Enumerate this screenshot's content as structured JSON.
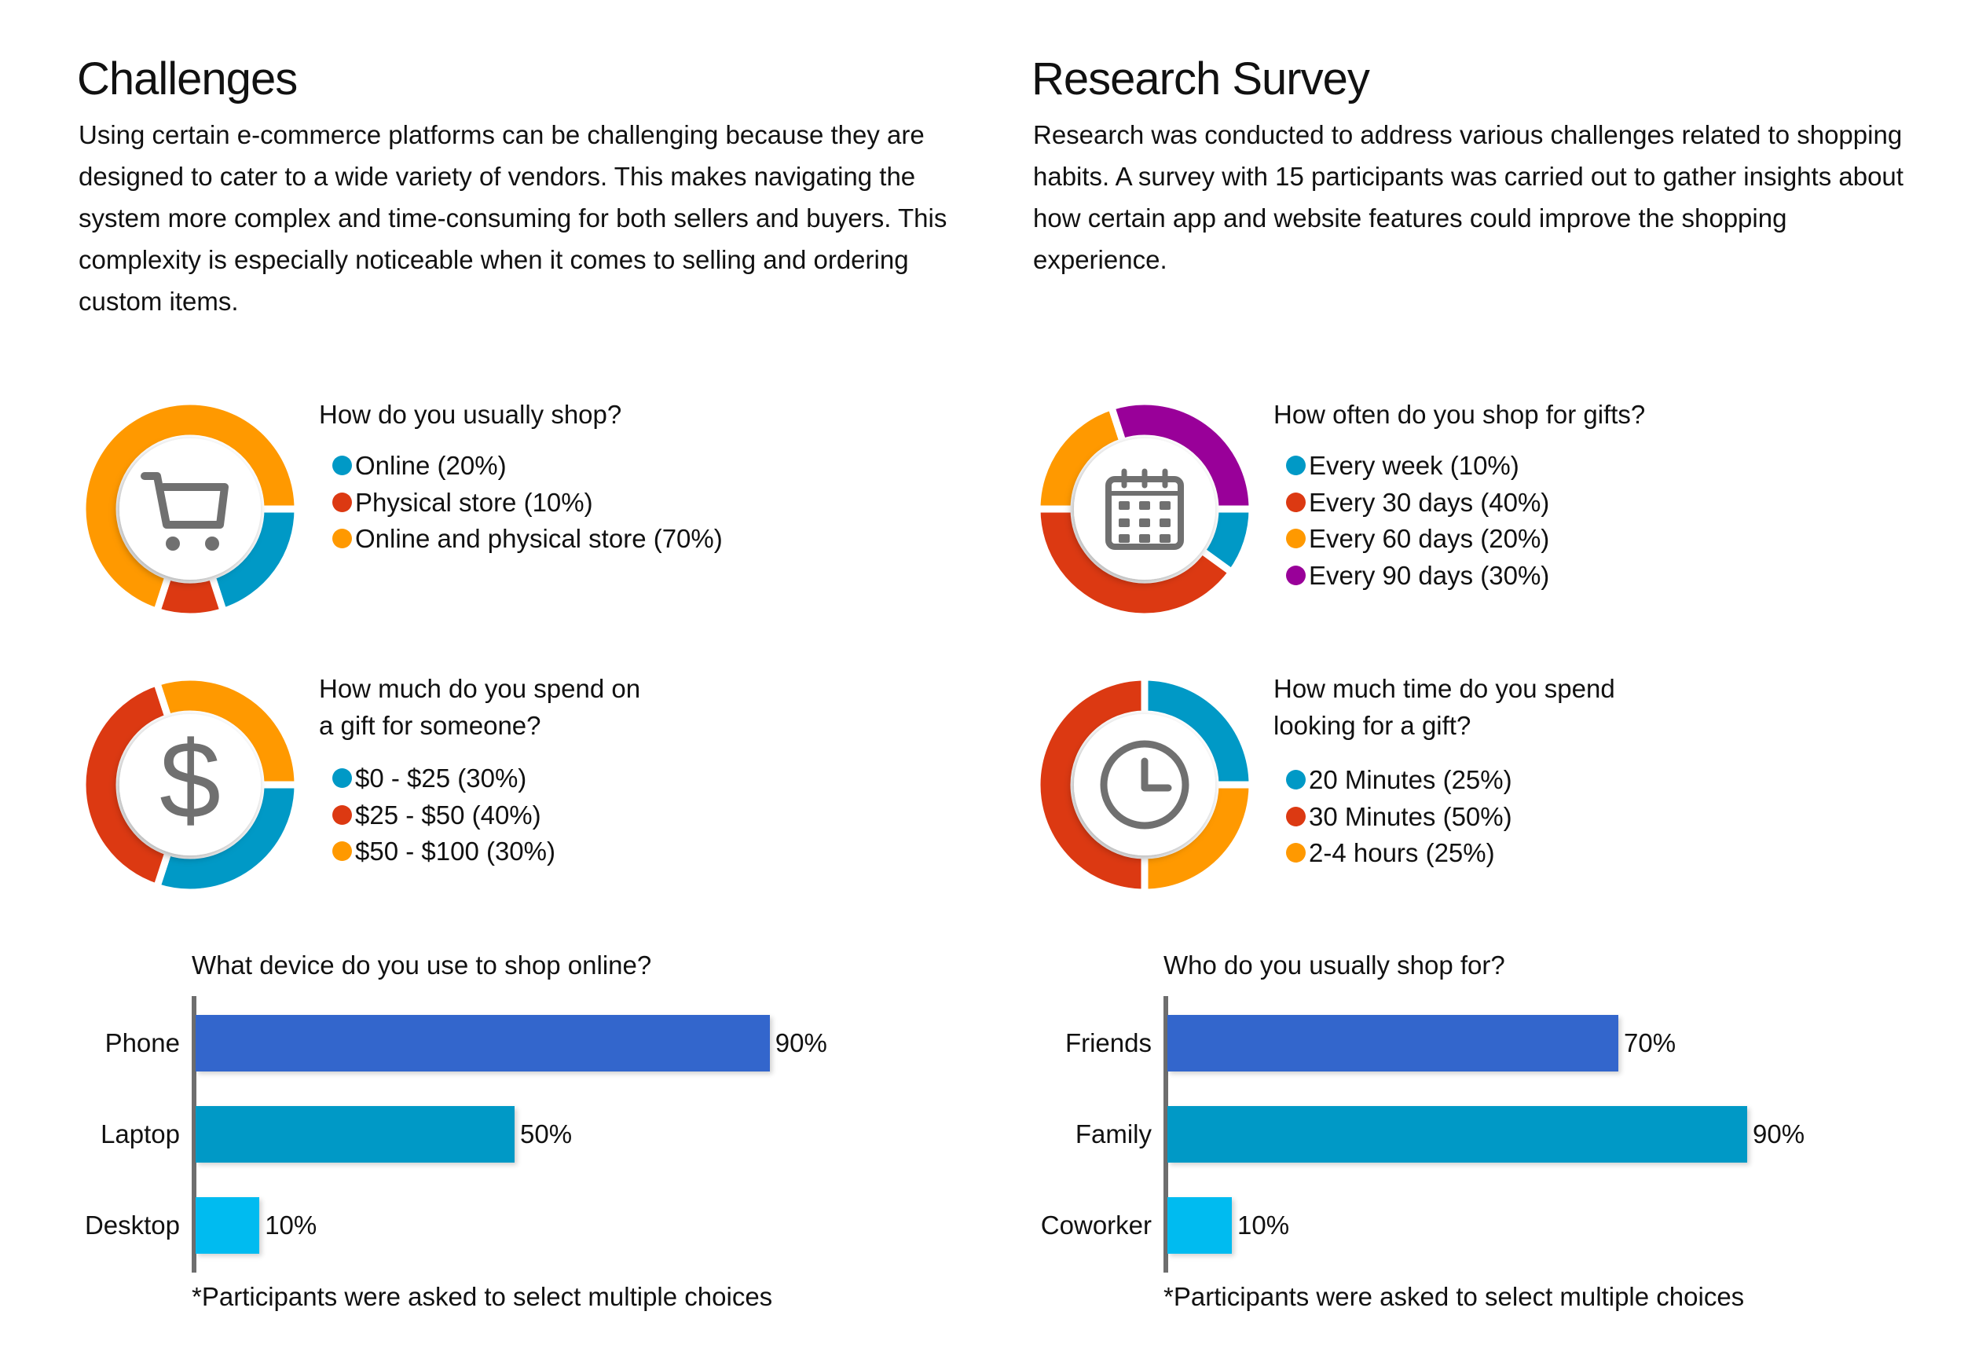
{
  "left": {
    "title": "Challenges",
    "paragraph": "Using certain e-commerce platforms can be challenging because they are designed to cater to a wide variety of vendors. This makes navigating the system more complex and time-consuming for both sellers and buyers. This complexity is especially noticeable when it comes to selling and ordering custom items."
  },
  "right": {
    "title": "Research Survey",
    "paragraph": "Research was conducted to address various challenges related to shopping habits. A survey with 15 participants was carried out to gather insights about how certain app and website features could improve the shopping experience."
  },
  "colors": {
    "blue": "#0099C6",
    "red": "#DC3912",
    "orange": "#FF9900",
    "purple": "#990099",
    "bar_dark": "#3366CC",
    "bar_mid": "#0099C6",
    "bar_light": "#00BBF0",
    "icon": "#707070",
    "axis": "#6E6E6E"
  },
  "chart_data": [
    {
      "type": "pie",
      "variant": "donut",
      "icon": "shopping-cart-icon",
      "title_lines": [
        "How do you usually shop?"
      ],
      "categories": [
        "Online (20%)",
        "Physical store (10%)",
        "Online and physical store (70%)"
      ],
      "values": [
        20,
        10,
        70
      ],
      "colors": [
        "#0099C6",
        "#DC3912",
        "#FF9900"
      ]
    },
    {
      "type": "pie",
      "variant": "donut",
      "icon": "dollar-icon",
      "title_lines": [
        "How much do you spend on",
        "a gift for someone?"
      ],
      "categories": [
        "$0 - $25 (30%)",
        "$25 - $50 (40%)",
        "$50 - $100 (30%)"
      ],
      "values": [
        30,
        40,
        30
      ],
      "colors": [
        "#0099C6",
        "#DC3912",
        "#FF9900"
      ]
    },
    {
      "type": "pie",
      "variant": "donut",
      "icon": "calendar-icon",
      "title_lines": [
        "How often do you shop for gifts?"
      ],
      "categories": [
        "Every week (10%)",
        "Every 30 days (40%)",
        "Every 60 days (20%)",
        "Every 90 days (30%)"
      ],
      "values": [
        10,
        40,
        20,
        30
      ],
      "colors": [
        "#0099C6",
        "#DC3912",
        "#FF9900",
        "#990099"
      ]
    },
    {
      "type": "pie",
      "variant": "donut",
      "icon": "clock-icon",
      "title_lines": [
        "How much time do you spend",
        "looking for a gift?"
      ],
      "categories": [
        "20 Minutes (25%)",
        "30 Minutes (50%)",
        "2-4 hours (25%)"
      ],
      "values": [
        25,
        50,
        25
      ],
      "colors": [
        "#0099C6",
        "#DC3912",
        "#FF9900"
      ]
    },
    {
      "type": "bar",
      "orientation": "horizontal",
      "title": "What device do you use to shop online?",
      "categories": [
        "Phone",
        "Laptop",
        "Desktop"
      ],
      "values": [
        90,
        50,
        10
      ],
      "value_labels": [
        "90%",
        "50%",
        "10%"
      ],
      "colors": [
        "#3366CC",
        "#0099C6",
        "#00BBF0"
      ],
      "xlim": [
        0,
        100
      ],
      "footnote": "*Participants were asked to select multiple choices"
    },
    {
      "type": "bar",
      "orientation": "horizontal",
      "title": "Who do you usually shop for?",
      "categories": [
        "Friends",
        "Family",
        "Coworker"
      ],
      "values": [
        70,
        90,
        10
      ],
      "value_labels": [
        "70%",
        "90%",
        "10%"
      ],
      "colors": [
        "#3366CC",
        "#0099C6",
        "#00BBF0"
      ],
      "xlim": [
        0,
        100
      ],
      "footnote": "*Participants were asked to select multiple choices"
    }
  ]
}
